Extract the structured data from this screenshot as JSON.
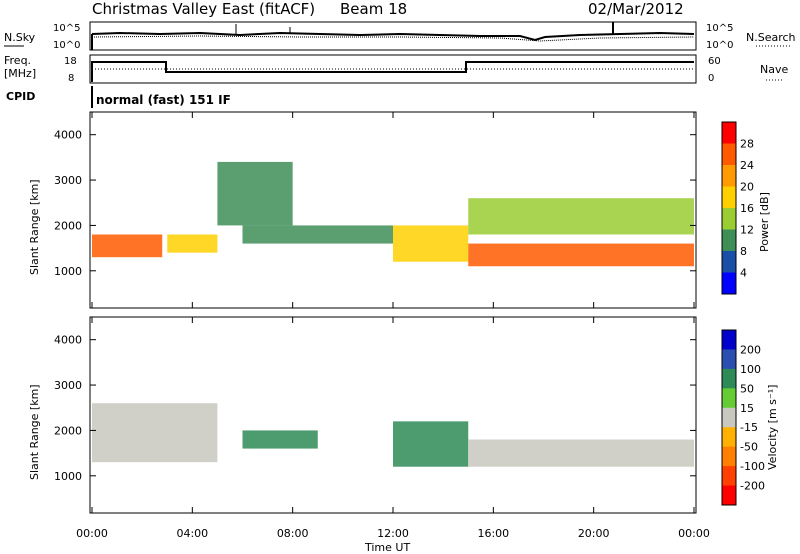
{
  "header": {
    "title": "Christmas Valley East (fitACF)",
    "beam": "Beam 18",
    "date": "02/Mar/2012"
  },
  "strips": {
    "nsky_label": "N.Sky",
    "nsky_ticks": [
      "10^5",
      "10^0"
    ],
    "nsearch_label": "N.Search",
    "nsearch_ticks": [
      "10^5",
      "10^0"
    ],
    "freq_label_1": "Freq.",
    "freq_label_2": "[MHz]",
    "freq_ticks": [
      "18",
      "8"
    ],
    "nave_label": "Nave",
    "nave_ticks": [
      "60",
      "0"
    ],
    "cpid_label": "CPID",
    "cpid_text": "normal (fast) 151 IF"
  },
  "axes": {
    "ylabel": "Slant Range [km]",
    "xlabel": "Time UT",
    "yticks": [
      "1000",
      "2000",
      "3000",
      "4000"
    ],
    "xticks": [
      "00:00",
      "04:00",
      "08:00",
      "12:00",
      "16:00",
      "20:00",
      "00:00"
    ]
  },
  "power_bar": {
    "label": "Power [dB]",
    "ticks": [
      "28",
      "24",
      "20",
      "16",
      "12",
      "8",
      "4"
    ],
    "colors": [
      "#ff0000",
      "#ff5a00",
      "#ff9a00",
      "#ffd000",
      "#9acd32",
      "#3e8e58",
      "#1a4fa8",
      "#0000ff"
    ]
  },
  "velocity_bar": {
    "label": "Velocity [m s⁻¹]",
    "ticks": [
      "200",
      "100",
      "50",
      "15",
      "-15",
      "-50",
      "-100",
      "-200"
    ],
    "colors": [
      "#0000cc",
      "#2a4fb0",
      "#2e8b57",
      "#66cc33",
      "#c8c8c0",
      "#ffb000",
      "#ff7f00",
      "#ff4000",
      "#ff0000"
    ]
  },
  "chart_data": [
    {
      "type": "heatmap",
      "name": "Power",
      "xlabel": "Time UT",
      "ylabel": "Slant Range [km]",
      "xlim_hours": [
        0,
        24
      ],
      "ylim": [
        180,
        4500
      ],
      "bands": [
        {
          "t": [
            0,
            2.8
          ],
          "r": [
            1300,
            1800
          ],
          "power": 24
        },
        {
          "t": [
            3,
            5
          ],
          "r": [
            1400,
            1800
          ],
          "power": 16
        },
        {
          "t": [
            5,
            8
          ],
          "r": [
            2000,
            3400
          ],
          "power": 8
        },
        {
          "t": [
            6,
            12
          ],
          "r": [
            1600,
            2000
          ],
          "power": 8
        },
        {
          "t": [
            12,
            15
          ],
          "r": [
            1200,
            2000
          ],
          "power": 16
        },
        {
          "t": [
            15,
            24
          ],
          "r": [
            1100,
            1600
          ],
          "power": 24
        },
        {
          "t": [
            15,
            24
          ],
          "r": [
            1800,
            2600
          ],
          "power": 12
        }
      ]
    },
    {
      "type": "heatmap",
      "name": "Velocity",
      "xlabel": "Time UT",
      "ylabel": "Slant Range [km]",
      "xlim_hours": [
        0,
        24
      ],
      "ylim": [
        180,
        4500
      ],
      "bands": [
        {
          "t": [
            0,
            5
          ],
          "r": [
            1300,
            2600
          ],
          "velocity": -15
        },
        {
          "t": [
            6,
            9
          ],
          "r": [
            1600,
            2000
          ],
          "velocity": 50
        },
        {
          "t": [
            12,
            15
          ],
          "r": [
            1200,
            2200
          ],
          "velocity": 50
        },
        {
          "t": [
            15,
            24
          ],
          "r": [
            1200,
            1800
          ],
          "velocity": 0
        }
      ]
    }
  ]
}
